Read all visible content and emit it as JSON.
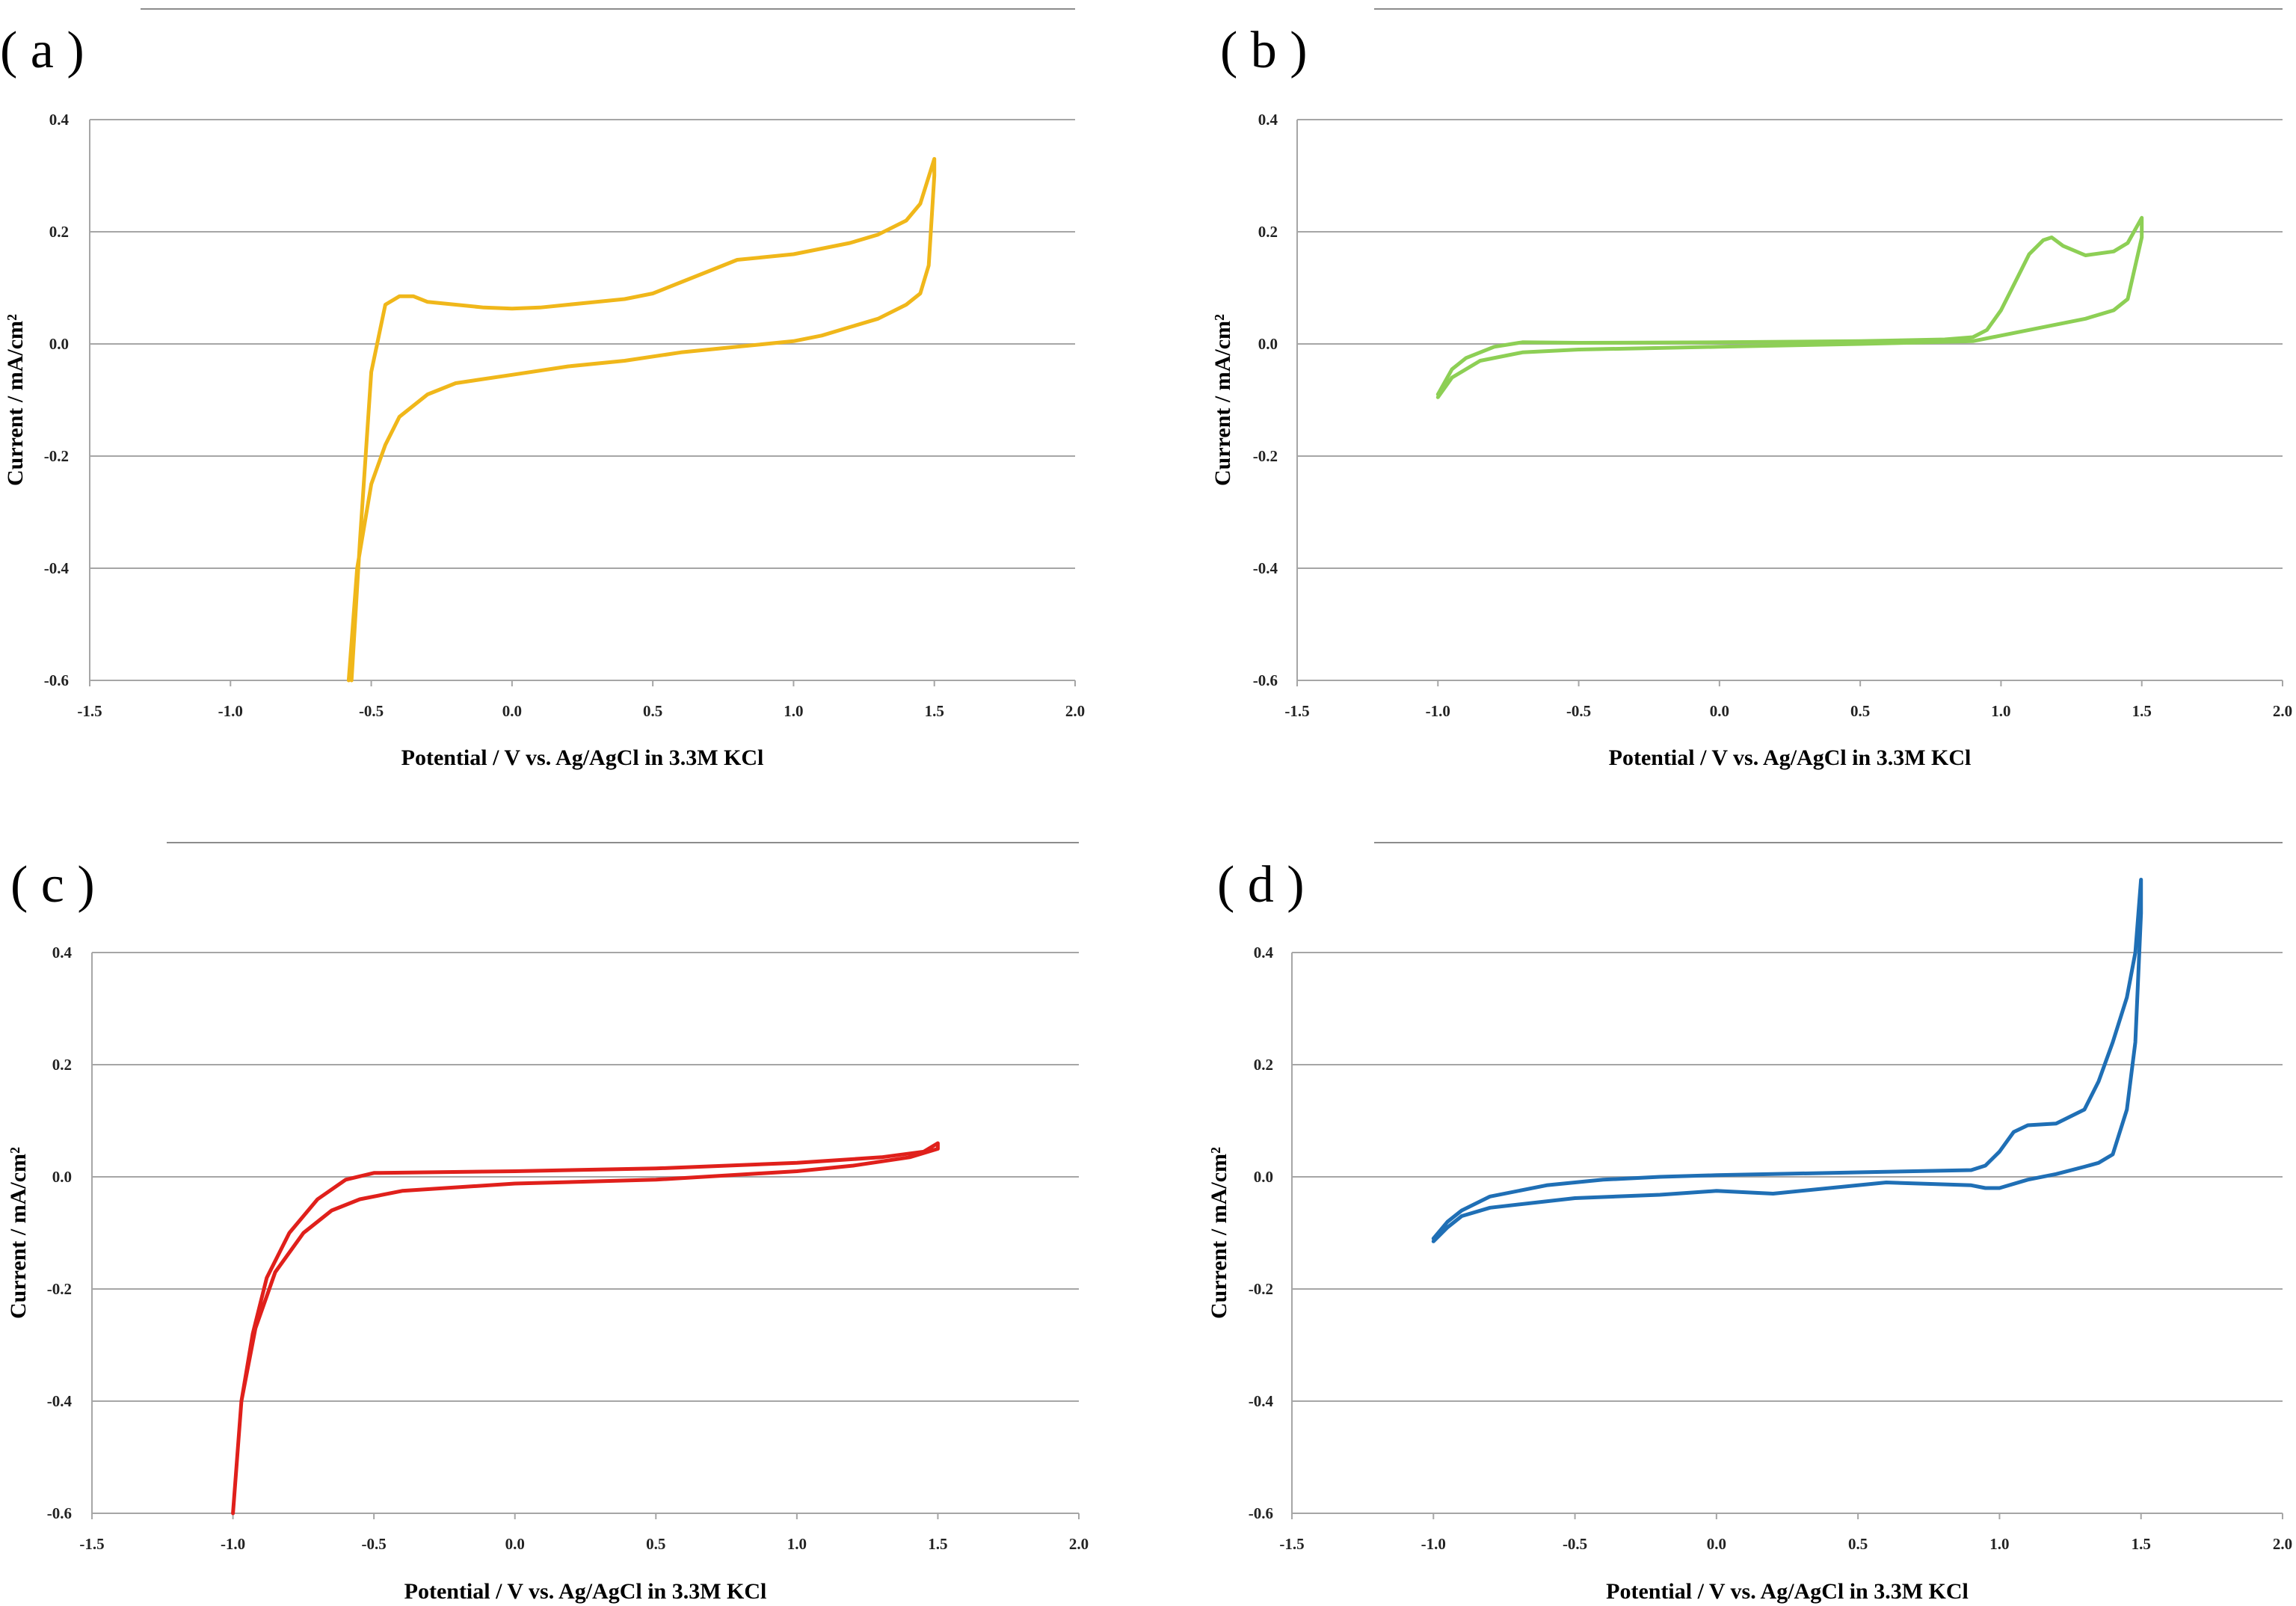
{
  "chart_data": [
    {
      "panel": "( a )",
      "type": "line",
      "xlabel": "Potential / V vs. Ag/AgCl in 3.3M KCl",
      "ylabel": "Current / mA/cm²",
      "xlim": [
        -1.5,
        2.0
      ],
      "ylim": [
        -0.6,
        0.4
      ],
      "xticks": [
        "-1.5",
        "-1.0",
        "-0.5",
        "0.0",
        "0.5",
        "1.0",
        "1.5",
        "2.0"
      ],
      "yticks": [
        "0.4",
        "0.2",
        "0.0",
        "-0.2",
        "-0.4",
        "-0.6"
      ],
      "grid": true,
      "color": "#f0b71a",
      "x": [
        -0.57,
        -0.54,
        -0.5,
        -0.45,
        -0.4,
        -0.35,
        -0.3,
        -0.2,
        -0.1,
        0.0,
        0.1,
        0.2,
        0.3,
        0.4,
        0.5,
        0.6,
        0.7,
        0.8,
        0.9,
        1.0,
        1.1,
        1.2,
        1.3,
        1.4,
        1.45,
        1.5,
        1.5,
        1.48,
        1.45,
        1.4,
        1.3,
        1.2,
        1.1,
        1.0,
        0.8,
        0.6,
        0.4,
        0.2,
        0.0,
        -0.2,
        -0.3,
        -0.4,
        -0.45,
        -0.5,
        -0.55,
        -0.58
      ],
      "y": [
        -0.6,
        -0.35,
        -0.05,
        0.07,
        0.085,
        0.085,
        0.075,
        0.07,
        0.065,
        0.063,
        0.065,
        0.07,
        0.075,
        0.08,
        0.09,
        0.11,
        0.13,
        0.15,
        0.155,
        0.16,
        0.17,
        0.18,
        0.195,
        0.22,
        0.25,
        0.33,
        0.3,
        0.14,
        0.09,
        0.07,
        0.045,
        0.03,
        0.015,
        0.005,
        -0.005,
        -0.015,
        -0.03,
        -0.04,
        -0.055,
        -0.07,
        -0.09,
        -0.13,
        -0.18,
        -0.25,
        -0.4,
        -0.6
      ]
    },
    {
      "panel": "( b )",
      "type": "line",
      "xlabel": "Potential / V vs. Ag/AgCl in 3.3M KCl",
      "ylabel": "Current / mA/cm²",
      "xlim": [
        -1.5,
        2.0
      ],
      "ylim": [
        -0.6,
        0.4
      ],
      "xticks": [
        "-1.5",
        "-1.0",
        "-0.5",
        "0.0",
        "0.5",
        "1.0",
        "1.5",
        "2.0"
      ],
      "yticks": [
        "0.4",
        "0.2",
        "0.0",
        "-0.2",
        "-0.4",
        "-0.6"
      ],
      "grid": true,
      "color": "#8dcf55",
      "x": [
        -1.0,
        -0.95,
        -0.9,
        -0.8,
        -0.7,
        -0.5,
        0.0,
        0.5,
        0.8,
        0.9,
        0.95,
        1.0,
        1.05,
        1.1,
        1.15,
        1.18,
        1.22,
        1.3,
        1.4,
        1.45,
        1.5,
        1.5,
        1.45,
        1.4,
        1.3,
        1.2,
        1.1,
        1.0,
        0.9,
        0.5,
        0.0,
        -0.5,
        -0.7,
        -0.85,
        -0.95,
        -1.0
      ],
      "y": [
        -0.09,
        -0.045,
        -0.025,
        -0.005,
        0.003,
        0.002,
        0.003,
        0.005,
        0.008,
        0.012,
        0.025,
        0.06,
        0.11,
        0.16,
        0.185,
        0.19,
        0.175,
        0.158,
        0.165,
        0.18,
        0.225,
        0.19,
        0.08,
        0.06,
        0.045,
        0.035,
        0.025,
        0.015,
        0.005,
        0.0,
        -0.005,
        -0.01,
        -0.015,
        -0.03,
        -0.06,
        -0.095
      ]
    },
    {
      "panel": "( c )",
      "type": "line",
      "xlabel": "Potential / V vs. Ag/AgCl in 3.3M KCl",
      "ylabel": "Current / mA/cm²",
      "xlim": [
        -1.5,
        2.0
      ],
      "ylim": [
        -0.6,
        0.4
      ],
      "xticks": [
        "-1.5",
        "-1.0",
        "-0.5",
        "0.0",
        "0.5",
        "1.0",
        "1.5",
        "2.0"
      ],
      "yticks": [
        "0.4",
        "0.2",
        "0.0",
        "-0.2",
        "-0.4",
        "-0.6"
      ],
      "grid": true,
      "color": "#e0201b",
      "x": [
        -1.0,
        -0.97,
        -0.93,
        -0.88,
        -0.8,
        -0.7,
        -0.6,
        -0.5,
        0.0,
        0.5,
        1.0,
        1.3,
        1.45,
        1.5,
        1.5,
        1.4,
        1.2,
        1.0,
        0.5,
        0.0,
        -0.4,
        -0.55,
        -0.65,
        -0.75,
        -0.85,
        -0.92,
        -0.97,
        -1.0
      ],
      "y": [
        -0.6,
        -0.4,
        -0.28,
        -0.18,
        -0.1,
        -0.04,
        -0.005,
        0.007,
        0.01,
        0.015,
        0.025,
        0.035,
        0.045,
        0.06,
        0.05,
        0.035,
        0.02,
        0.01,
        -0.005,
        -0.012,
        -0.025,
        -0.04,
        -0.06,
        -0.1,
        -0.17,
        -0.27,
        -0.4,
        -0.6
      ]
    },
    {
      "panel": "( d )",
      "type": "line",
      "xlabel": "Potential / V vs. Ag/AgCl in 3.3M KCl",
      "ylabel": "Current / mA/cm²",
      "xlim": [
        -1.5,
        2.0
      ],
      "ylim": [
        -0.6,
        0.4
      ],
      "xticks": [
        "-1.5",
        "-1.0",
        "-0.5",
        "0.0",
        "0.5",
        "1.0",
        "1.5",
        "2.0"
      ],
      "yticks": [
        "0.4",
        "0.2",
        "0.0",
        "-0.2",
        "-0.4",
        "-0.6"
      ],
      "grid": true,
      "color": "#1f6fb5",
      "x": [
        -1.0,
        -0.95,
        -0.9,
        -0.8,
        -0.6,
        -0.4,
        -0.2,
        0.0,
        0.5,
        0.9,
        0.95,
        1.0,
        1.05,
        1.1,
        1.2,
        1.3,
        1.35,
        1.4,
        1.45,
        1.48,
        1.5,
        1.5,
        1.48,
        1.45,
        1.4,
        1.35,
        1.3,
        1.2,
        1.1,
        1.0,
        0.95,
        0.9,
        0.6,
        0.2,
        0.0,
        -0.2,
        -0.5,
        -0.8,
        -0.9,
        -0.95,
        -1.0
      ],
      "y": [
        -0.11,
        -0.08,
        -0.06,
        -0.035,
        -0.015,
        -0.005,
        0.0,
        0.003,
        0.008,
        0.012,
        0.02,
        0.045,
        0.08,
        0.092,
        0.095,
        0.12,
        0.17,
        0.24,
        0.32,
        0.4,
        0.53,
        0.47,
        0.24,
        0.12,
        0.04,
        0.025,
        0.018,
        0.005,
        -0.005,
        -0.02,
        -0.02,
        -0.015,
        -0.01,
        -0.03,
        -0.025,
        -0.032,
        -0.038,
        -0.055,
        -0.07,
        -0.09,
        -0.115
      ]
    }
  ]
}
